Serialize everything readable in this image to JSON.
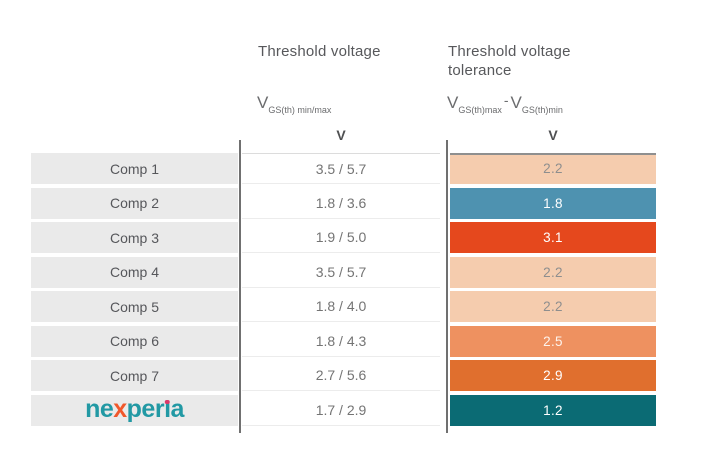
{
  "table": {
    "voltage_column": {
      "title": "Threshold voltage",
      "symbol_base": "V",
      "symbol_sub": "GS(th) min/max",
      "unit": "V"
    },
    "tolerance_column": {
      "title": "Threshold voltage tolerance",
      "symbol1_base": "V",
      "symbol1_sub": "GS(th)max",
      "minus": "-",
      "symbol2_base": "V",
      "symbol2_sub": "GS(th)min",
      "unit": "V"
    },
    "rows": [
      {
        "label": "Comp 1",
        "range": "3.5 / 5.7",
        "tolerance": "2.2",
        "bg": "#F5CCAE",
        "fg": "#8E8E8E"
      },
      {
        "label": "Comp 2",
        "range": "1.8 / 3.6",
        "tolerance": "1.8",
        "bg": "#4E92B0",
        "fg": "#FFFFFF"
      },
      {
        "label": "Comp 3",
        "range": "1.9 / 5.0",
        "tolerance": "3.1",
        "bg": "#E5481D",
        "fg": "#FFFFFF"
      },
      {
        "label": "Comp 4",
        "range": "3.5 / 5.7",
        "tolerance": "2.2",
        "bg": "#F5CCAE",
        "fg": "#8E8E8E"
      },
      {
        "label": "Comp 5",
        "range": "1.8 / 4.0",
        "tolerance": "2.2",
        "bg": "#F5CCAE",
        "fg": "#8E8E8E"
      },
      {
        "label": "Comp 6",
        "range": "1.8 / 4.3",
        "tolerance": "2.5",
        "bg": "#EE9160",
        "fg": "#FDF3EC"
      },
      {
        "label": "Comp 7",
        "range": "2.7 / 5.6",
        "tolerance": "2.9",
        "bg": "#E06F2E",
        "fg": "#FFFFFF"
      },
      {
        "label": "",
        "is_logo": true,
        "range": "1.7 / 2.9",
        "tolerance": "1.2",
        "bg": "#0B6B74",
        "fg": "#FFFFFF"
      }
    ]
  },
  "logo": {
    "p1": "ne",
    "x": "x",
    "p2": "per",
    "i": "ı",
    "p3": "a",
    "teal": "#2299A4",
    "orange": "#F0582B",
    "dot_color": "#DB3A6A"
  },
  "colors": {
    "label_cell_bg": "#EAEAEA",
    "separator_line": "#707070",
    "header_text": "#57585B",
    "value_text": "#747474",
    "heat_low": "#0B6B74",
    "heat_mid_low": "#4E92B0",
    "heat_neutral": "#F5CCAE",
    "heat_high": "#E5481D"
  },
  "chart_data": {
    "type": "table",
    "columns": [
      {
        "header": "",
        "role": "component"
      },
      {
        "header": "Threshold voltage",
        "symbol": "VGS(th) min/max",
        "unit": "V"
      },
      {
        "header": "Threshold voltage tolerance",
        "symbol": "VGS(th)max - VGS(th)min",
        "unit": "V"
      }
    ],
    "rows": [
      {
        "component": "Comp 1",
        "vgs_th_min": 3.5,
        "vgs_th_max": 5.7,
        "tolerance": 2.2
      },
      {
        "component": "Comp 2",
        "vgs_th_min": 1.8,
        "vgs_th_max": 3.6,
        "tolerance": 1.8
      },
      {
        "component": "Comp 3",
        "vgs_th_min": 1.9,
        "vgs_th_max": 5.0,
        "tolerance": 3.1
      },
      {
        "component": "Comp 4",
        "vgs_th_min": 3.5,
        "vgs_th_max": 5.7,
        "tolerance": 2.2
      },
      {
        "component": "Comp 5",
        "vgs_th_min": 1.8,
        "vgs_th_max": 4.0,
        "tolerance": 2.2
      },
      {
        "component": "Comp 6",
        "vgs_th_min": 1.8,
        "vgs_th_max": 4.3,
        "tolerance": 2.5
      },
      {
        "component": "Comp 7",
        "vgs_th_min": 2.7,
        "vgs_th_max": 5.6,
        "tolerance": 2.9
      },
      {
        "component": "Nexperia",
        "vgs_th_min": 1.7,
        "vgs_th_max": 2.9,
        "tolerance": 1.2
      }
    ],
    "layout": {
      "tolerance_column_style": "heatmap",
      "grid": "off",
      "legend": "none"
    }
  }
}
